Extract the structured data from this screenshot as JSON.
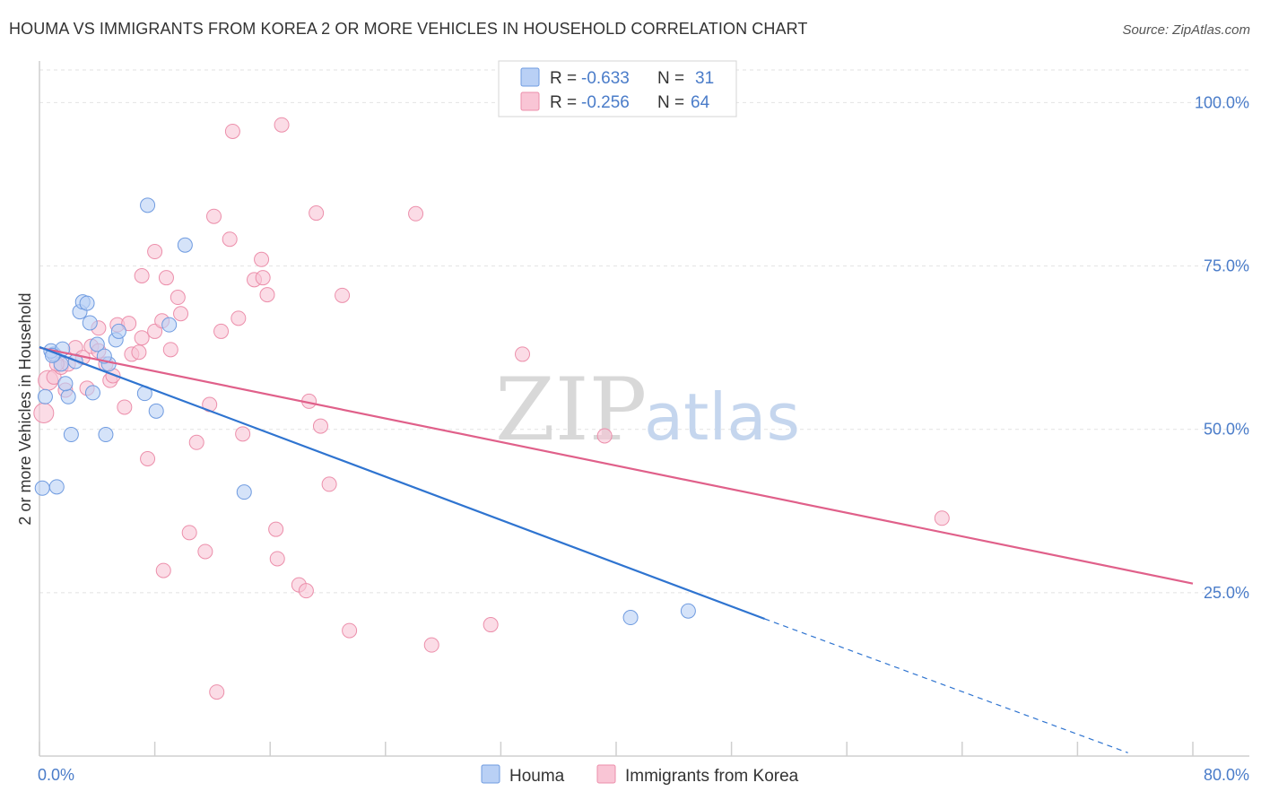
{
  "title": "HOUMA VS IMMIGRANTS FROM KOREA 2 OR MORE VEHICLES IN HOUSEHOLD CORRELATION CHART",
  "source": "Source: ZipAtlas.com",
  "watermark": {
    "part1": "ZIP",
    "part2": "atlas"
  },
  "colors": {
    "houma_fill": "#b9d0f5",
    "houma_stroke": "#6f9be0",
    "houma_line": "#2f74d0",
    "korea_fill": "#f9c5d5",
    "korea_stroke": "#ec8fab",
    "korea_line": "#e0608a",
    "accent_text": "#4a7cc9"
  },
  "legend_box": {
    "rows": [
      {
        "r_label": "R =",
        "r_value": "-0.633",
        "n_label": "N =",
        "n_value": "31"
      },
      {
        "r_label": "R =",
        "r_value": "-0.256",
        "n_label": "N =",
        "n_value": "64"
      }
    ]
  },
  "chart_data": {
    "type": "scatter",
    "title": "HOUMA VS IMMIGRANTS FROM KOREA 2 OR MORE VEHICLES IN HOUSEHOLD CORRELATION CHART",
    "xlabel": "",
    "ylabel": "2 or more Vehicles in Household",
    "xlim": [
      0,
      80
    ],
    "ylim": [
      0,
      105
    ],
    "x_tick_labels": [
      "0.0%",
      "80.0%"
    ],
    "y_ticks": [
      25,
      50,
      75,
      100
    ],
    "y_tick_labels": [
      "25.0%",
      "50.0%",
      "75.0%",
      "100.0%"
    ],
    "grid": "horizontal dashed",
    "legend_position": "bottom-center",
    "series": [
      {
        "name": "Houma",
        "points": [
          [
            0.2,
            41
          ],
          [
            1.2,
            41.2
          ],
          [
            0.4,
            55
          ],
          [
            2.2,
            49.2
          ],
          [
            4.6,
            49.2
          ],
          [
            2.0,
            55
          ],
          [
            3.7,
            55.6
          ],
          [
            1.5,
            60
          ],
          [
            1.0,
            61.5
          ],
          [
            0.8,
            62
          ],
          [
            1.6,
            62.3
          ],
          [
            2.8,
            68
          ],
          [
            3.0,
            69.5
          ],
          [
            3.3,
            69.3
          ],
          [
            3.5,
            66.3
          ],
          [
            4.0,
            63
          ],
          [
            4.8,
            60
          ],
          [
            4.5,
            61.2
          ],
          [
            5.3,
            63.7
          ],
          [
            5.5,
            65
          ],
          [
            7.3,
            55.5
          ],
          [
            8.1,
            52.8
          ],
          [
            7.5,
            84.3
          ],
          [
            9.0,
            66
          ],
          [
            10.1,
            78.2
          ],
          [
            14.2,
            40.4
          ],
          [
            41.0,
            21.2
          ],
          [
            45.0,
            22.2
          ],
          [
            1.8,
            57
          ],
          [
            2.5,
            60.4
          ],
          [
            0.9,
            61.3
          ]
        ],
        "trend": {
          "x": [
            0,
            50.3
          ],
          "y": [
            62.6,
            21.0
          ],
          "dashed_to": [
            75.5,
            0.5
          ]
        }
      },
      {
        "name": "Immigrants from Korea",
        "points": [
          [
            0.3,
            52.5
          ],
          [
            0.6,
            57.5
          ],
          [
            1.0,
            58
          ],
          [
            1.5,
            59.5
          ],
          [
            1.8,
            56
          ],
          [
            2.0,
            60
          ],
          [
            2.5,
            62.5
          ],
          [
            3.0,
            61
          ],
          [
            3.3,
            56.3
          ],
          [
            3.6,
            62.7
          ],
          [
            4.1,
            62
          ],
          [
            4.1,
            65.5
          ],
          [
            4.6,
            60
          ],
          [
            4.9,
            57.5
          ],
          [
            5.1,
            58.2
          ],
          [
            5.4,
            66
          ],
          [
            5.9,
            53.4
          ],
          [
            6.2,
            66.2
          ],
          [
            6.4,
            61.5
          ],
          [
            7.1,
            73.5
          ],
          [
            7.1,
            64
          ],
          [
            7.5,
            45.5
          ],
          [
            8.0,
            65
          ],
          [
            8.0,
            77.2
          ],
          [
            8.5,
            66.6
          ],
          [
            8.8,
            73.2
          ],
          [
            9.1,
            62.2
          ],
          [
            9.6,
            70.2
          ],
          [
            9.8,
            67.7
          ],
          [
            10.4,
            34.2
          ],
          [
            10.9,
            48
          ],
          [
            11.5,
            31.3
          ],
          [
            11.8,
            53.8
          ],
          [
            12.1,
            82.6
          ],
          [
            12.3,
            9.8
          ],
          [
            12.6,
            65
          ],
          [
            13.2,
            79.1
          ],
          [
            13.4,
            95.6
          ],
          [
            13.8,
            67
          ],
          [
            14.1,
            49.3
          ],
          [
            14.9,
            72.9
          ],
          [
            15.4,
            76
          ],
          [
            15.5,
            73.2
          ],
          [
            15.8,
            70.6
          ],
          [
            16.4,
            34.7
          ],
          [
            16.5,
            30.2
          ],
          [
            16.8,
            96.6
          ],
          [
            18.0,
            26.2
          ],
          [
            18.5,
            25.3
          ],
          [
            18.7,
            54.3
          ],
          [
            19.2,
            83.1
          ],
          [
            19.5,
            50.5
          ],
          [
            20.1,
            41.6
          ],
          [
            21.0,
            70.5
          ],
          [
            21.5,
            19.2
          ],
          [
            26.1,
            83
          ],
          [
            27.2,
            17
          ],
          [
            31.3,
            20.1
          ],
          [
            33.5,
            61.5
          ],
          [
            39.2,
            49
          ],
          [
            62.6,
            36.4
          ],
          [
            8.6,
            28.4
          ],
          [
            6.9,
            61.8
          ],
          [
            1.2,
            60
          ]
        ],
        "trend": {
          "x": [
            0,
            80
          ],
          "y": [
            62.5,
            26.4
          ]
        }
      }
    ]
  }
}
